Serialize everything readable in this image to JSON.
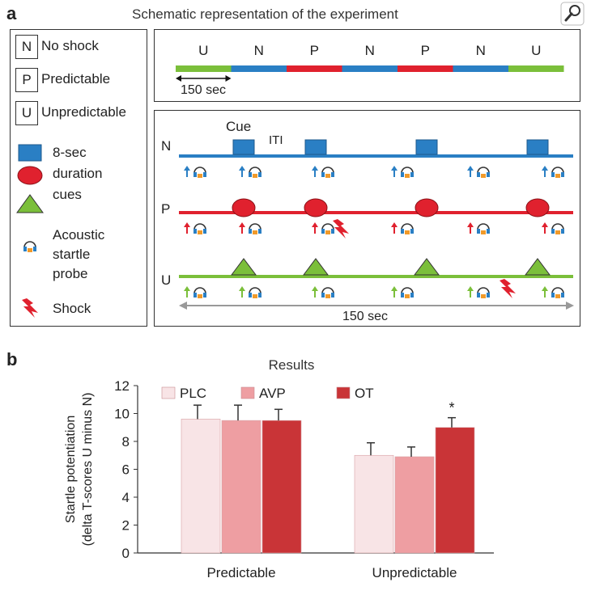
{
  "panel_a": {
    "letter": "a",
    "title": "Schematic representation of the experiment",
    "legend_conditions": [
      {
        "code": "N",
        "label": "No shock"
      },
      {
        "code": "P",
        "label": "Predictable"
      },
      {
        "code": "U",
        "label": "Unpredictable"
      }
    ],
    "legend_cue_text": [
      "8-sec",
      "duration",
      "cues"
    ],
    "legend_probe_text": [
      "Acoustic",
      "startle",
      "probe"
    ],
    "legend_shock_text": "Shock",
    "sequence": [
      "U",
      "N",
      "P",
      "N",
      "P",
      "N",
      "U"
    ],
    "sequence_colors": {
      "U": "#7bbf3a",
      "N": "#2a7fc4",
      "P": "#e0212e"
    },
    "scale_label": "150 sec",
    "timeline_rows": [
      {
        "code": "N",
        "color": "#2a7fc4"
      },
      {
        "code": "P",
        "color": "#e0212e"
      },
      {
        "code": "U",
        "color": "#7bbf3a"
      }
    ],
    "cue_label": "Cue",
    "iti_label": "ITI",
    "bottom_scale_label": "150 sec"
  },
  "panel_b": {
    "letter": "b"
  },
  "chart_data": {
    "type": "bar",
    "title": "Results",
    "categories": [
      "Predictable",
      "Unpredictable"
    ],
    "series": [
      {
        "name": "PLC",
        "color": "#f8e4e6",
        "values": [
          9.6,
          7.0
        ],
        "errors": [
          1.0,
          0.9
        ]
      },
      {
        "name": "AVP",
        "color": "#ee9ea2",
        "values": [
          9.5,
          6.9
        ],
        "errors": [
          1.1,
          0.7
        ]
      },
      {
        "name": "OT",
        "color": "#c93437",
        "values": [
          9.5,
          9.0
        ],
        "errors": [
          0.8,
          0.7
        ]
      }
    ],
    "ylabel_line1": "Startle potentiation",
    "ylabel_line2": "(delta T-scores U minus N)",
    "xlabel": "",
    "ylim": [
      0,
      12
    ],
    "yticks": [
      "0",
      "2",
      "4",
      "6",
      "8",
      "10",
      "12"
    ],
    "annotations": [
      {
        "category": "Unpredictable",
        "series": "OT",
        "text": "*"
      }
    ],
    "legend_position": "top"
  }
}
